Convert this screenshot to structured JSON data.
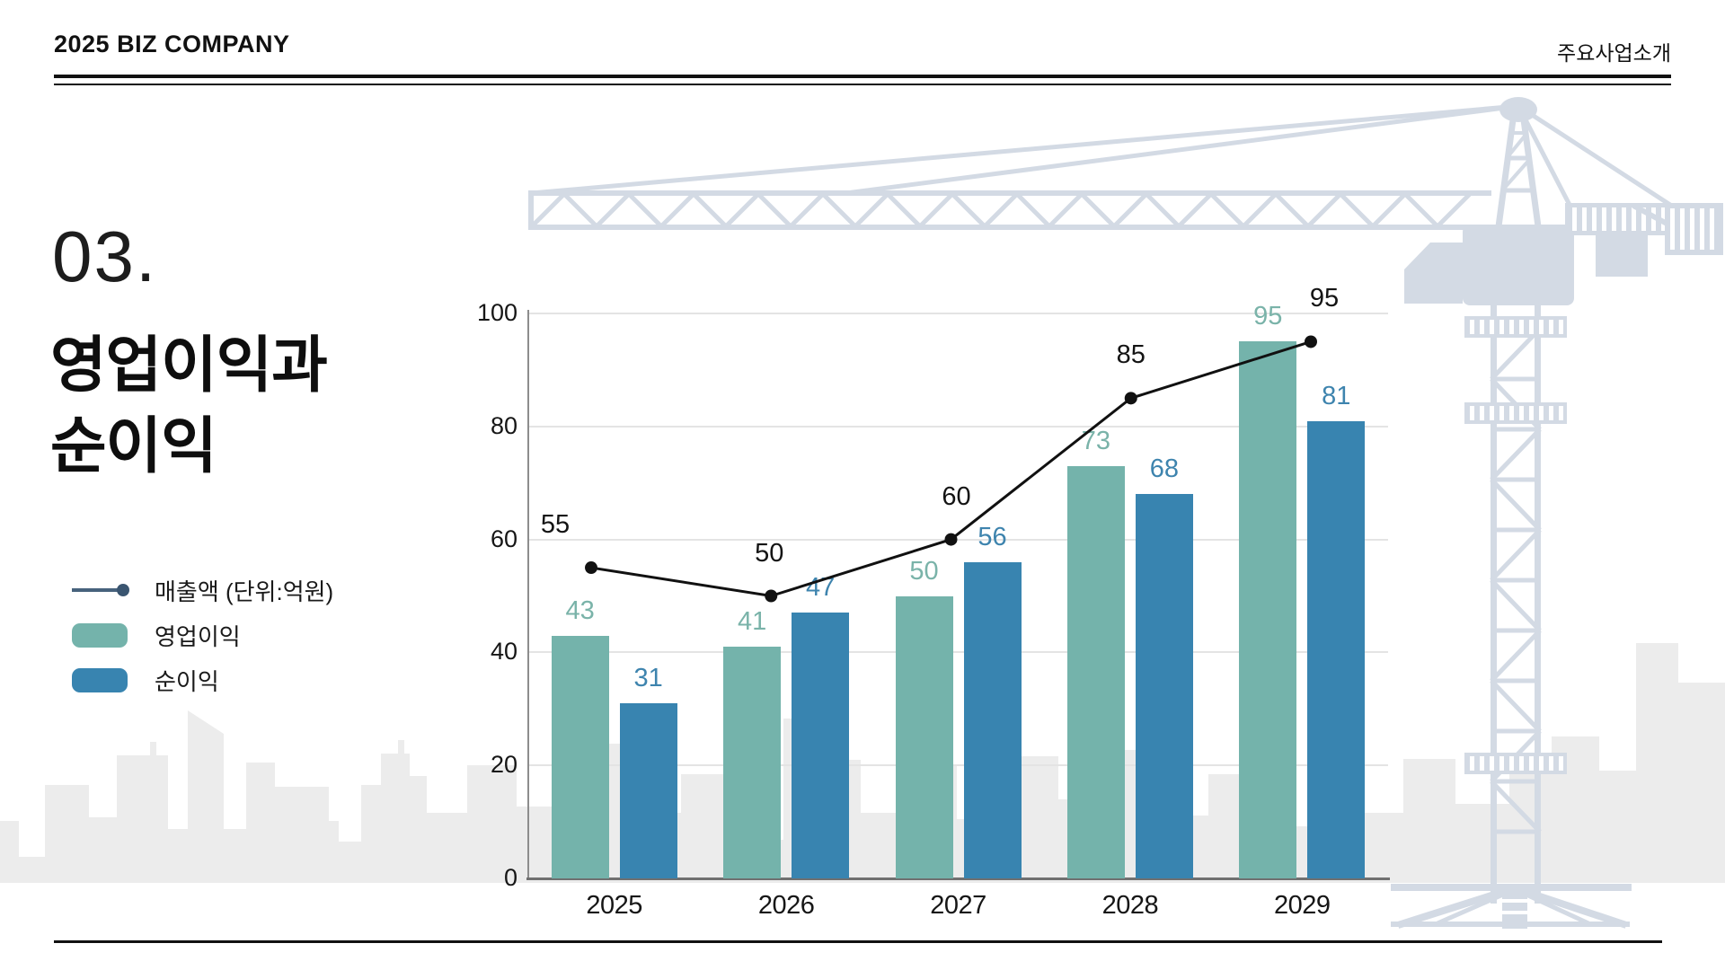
{
  "header": {
    "company": "2025 BIZ COMPANY",
    "section": "주요사업소개"
  },
  "title": {
    "number": "03.",
    "line1": "영업이익과",
    "line2": "순이익"
  },
  "legend": [
    {
      "type": "line",
      "label": "매출액 (단위:억원)",
      "color": "#47627c",
      "dot_color": "#3a5570"
    },
    {
      "type": "swatch",
      "label": "영업이익",
      "color": "#74b3ab"
    },
    {
      "type": "swatch",
      "label": "순이익",
      "color": "#3884b0"
    }
  ],
  "chart_data": {
    "type": "bar+line",
    "categories": [
      "2025",
      "2026",
      "2027",
      "2028",
      "2029"
    ],
    "series": [
      {
        "name": "영업이익",
        "type": "bar",
        "color": "#74b3ab",
        "label_color": "#7ab3a9",
        "values": [
          43,
          41,
          50,
          73,
          95
        ]
      },
      {
        "name": "순이익",
        "type": "bar",
        "color": "#3884b0",
        "label_color": "#3e84ae",
        "values": [
          31,
          47,
          56,
          68,
          81
        ]
      },
      {
        "name": "매출액",
        "type": "line",
        "color": "#111111",
        "label_color": "#141414",
        "values": [
          55,
          50,
          60,
          85,
          95
        ]
      }
    ],
    "ylim": [
      0,
      100
    ],
    "yticks": [
      0,
      20,
      40,
      60,
      80,
      100
    ],
    "grid": true,
    "legend_position": "left"
  },
  "decor": {
    "crane_color": "#d3dae4",
    "skyline_color": "#ececec"
  }
}
